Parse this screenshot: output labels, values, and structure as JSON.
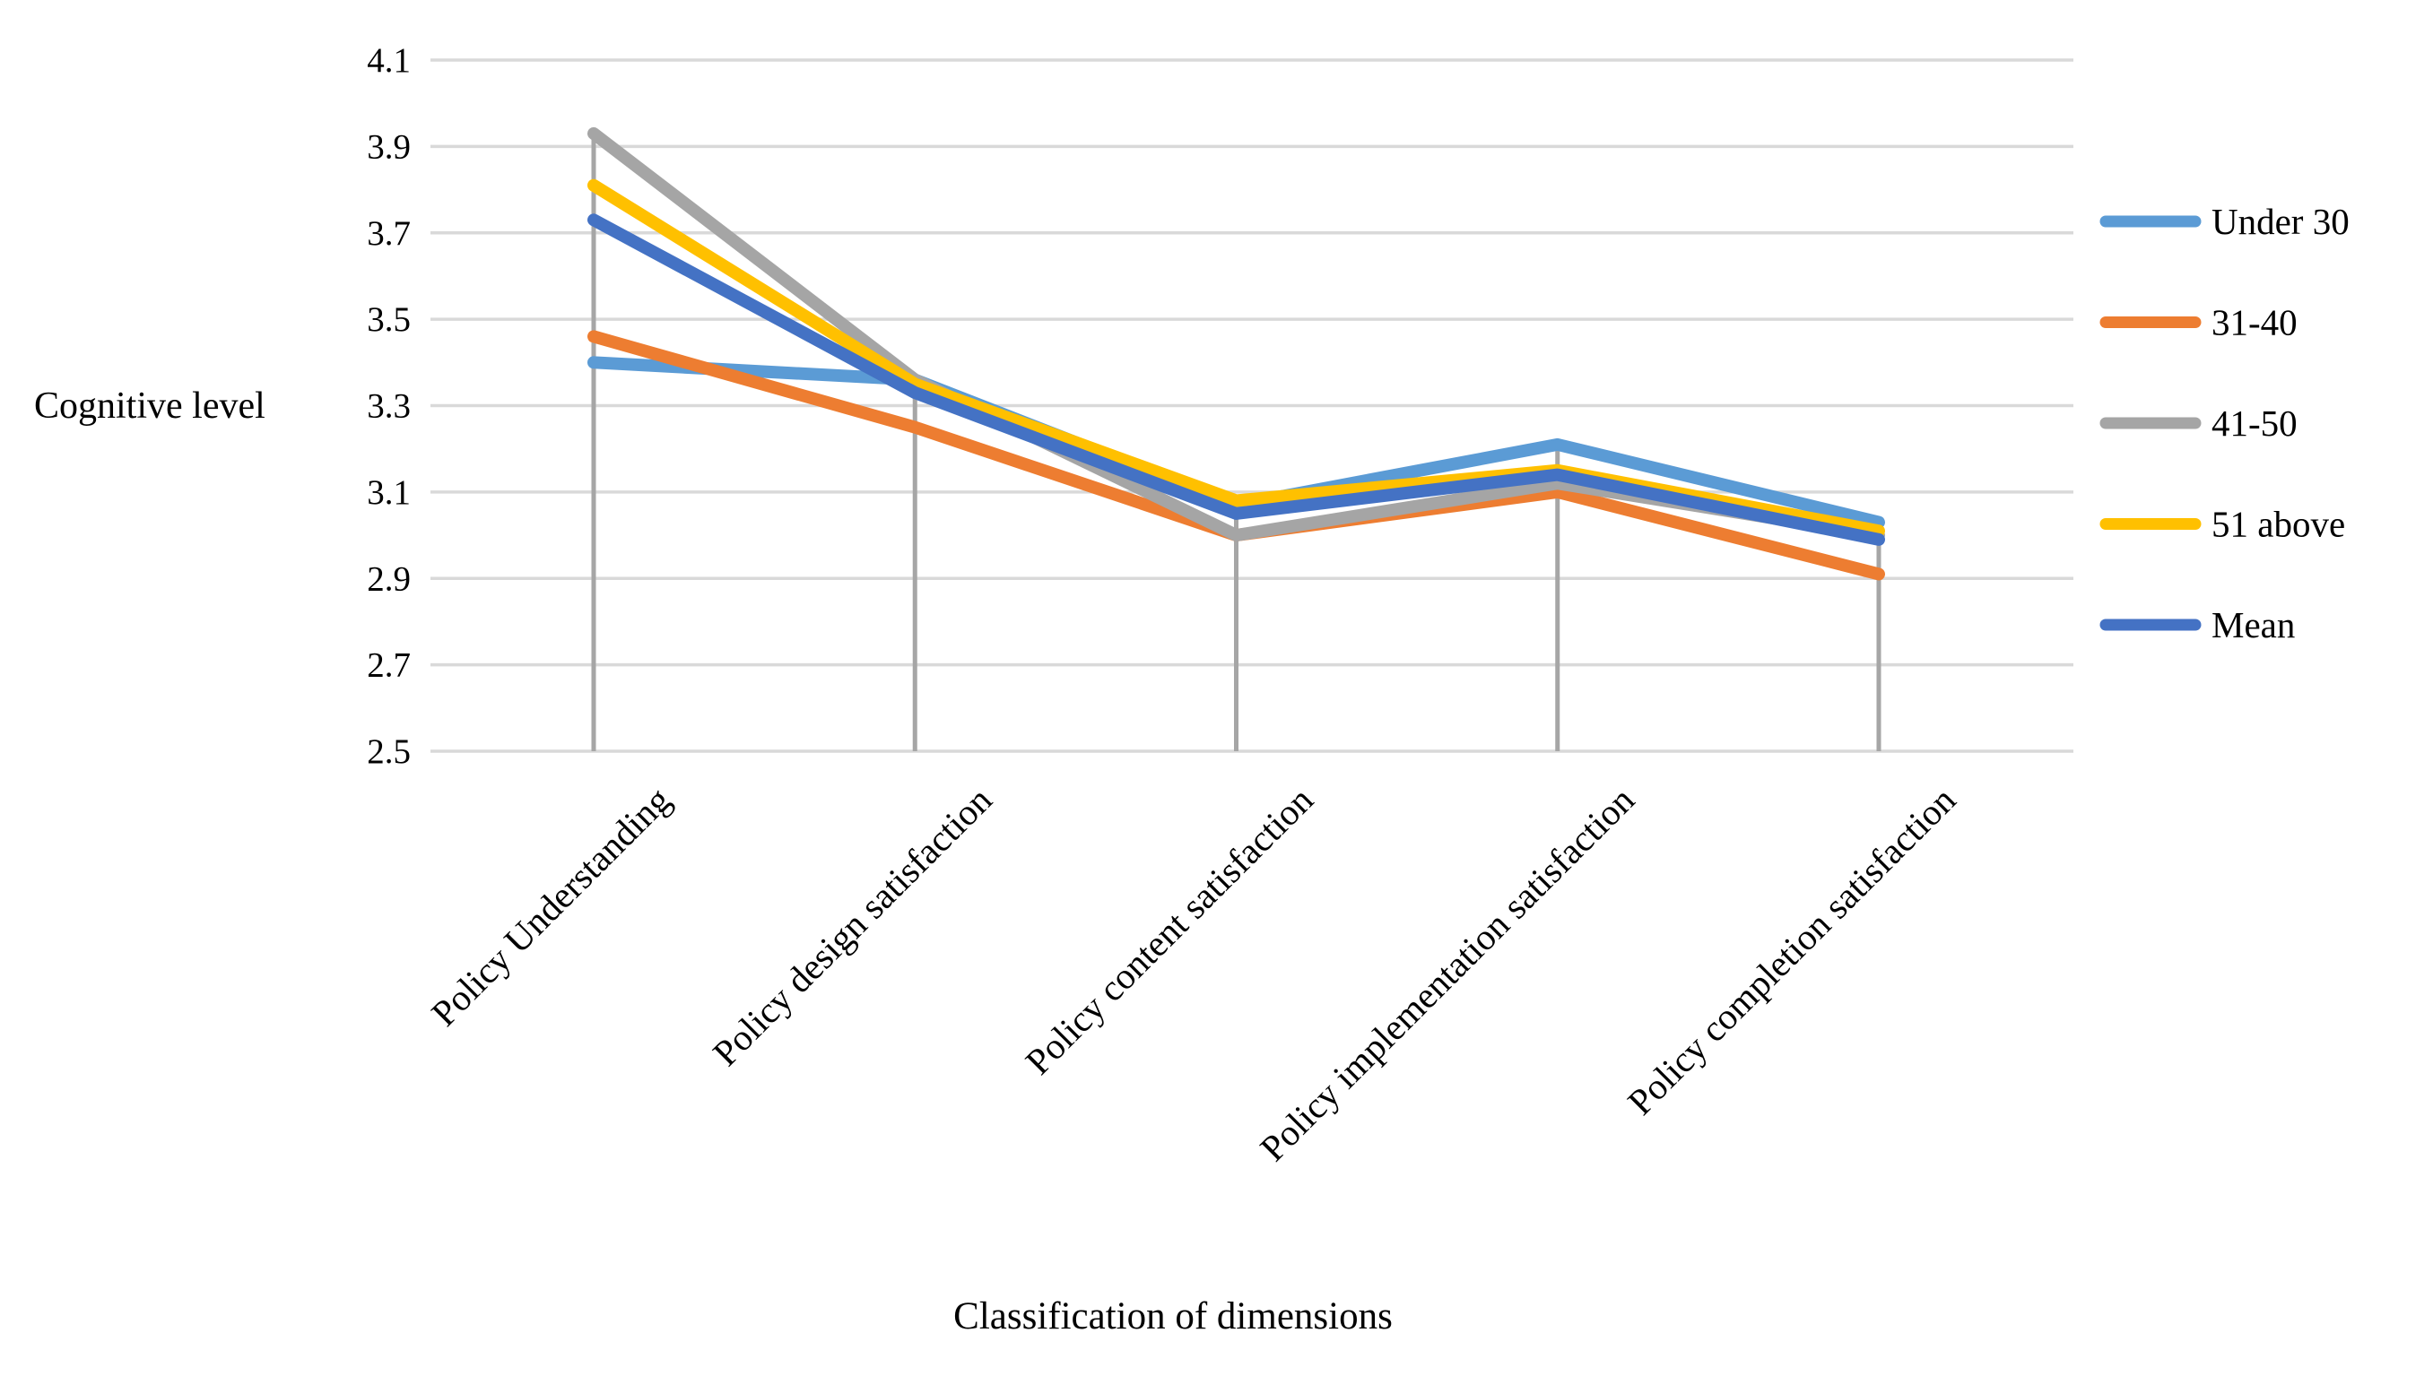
{
  "chart_data": {
    "type": "line",
    "title": "",
    "xlabel": "Classification of dimensions",
    "ylabel": "Cognitive level",
    "categories": [
      "Policy Understanding",
      "Policy design satisfaction",
      "Policy content satisfaction",
      "Policy implementation satisfaction",
      "Policy completion satisfaction"
    ],
    "series": [
      {
        "name": "Under 30",
        "color": "#5B9BD5",
        "values": [
          3.4,
          3.36,
          3.07,
          3.21,
          3.03
        ]
      },
      {
        "name": "31-40",
        "color": "#ED7D31",
        "values": [
          3.46,
          3.25,
          3.0,
          3.1,
          2.91
        ]
      },
      {
        "name": "41-50",
        "color": "#A5A5A5",
        "values": [
          3.93,
          3.36,
          3.0,
          3.12,
          3.0
        ]
      },
      {
        "name": "51 above",
        "color": "#FFC000",
        "values": [
          3.81,
          3.35,
          3.08,
          3.15,
          3.01
        ]
      },
      {
        "name": "Mean",
        "color": "#4472C4",
        "values": [
          3.73,
          3.33,
          3.05,
          3.14,
          2.99
        ]
      }
    ],
    "ylim": [
      2.5,
      4.1
    ],
    "y_tick_step": 0.2,
    "y_ticks": [
      "4.1",
      "3.9",
      "3.7",
      "3.5",
      "3.3",
      "3.1",
      "2.9",
      "2.7",
      "2.5"
    ],
    "grid": true,
    "legend_position": "right",
    "gridline_color": "#D9D9D9",
    "dropline_color": "#A6A6A6",
    "text_color": "#000000"
  }
}
